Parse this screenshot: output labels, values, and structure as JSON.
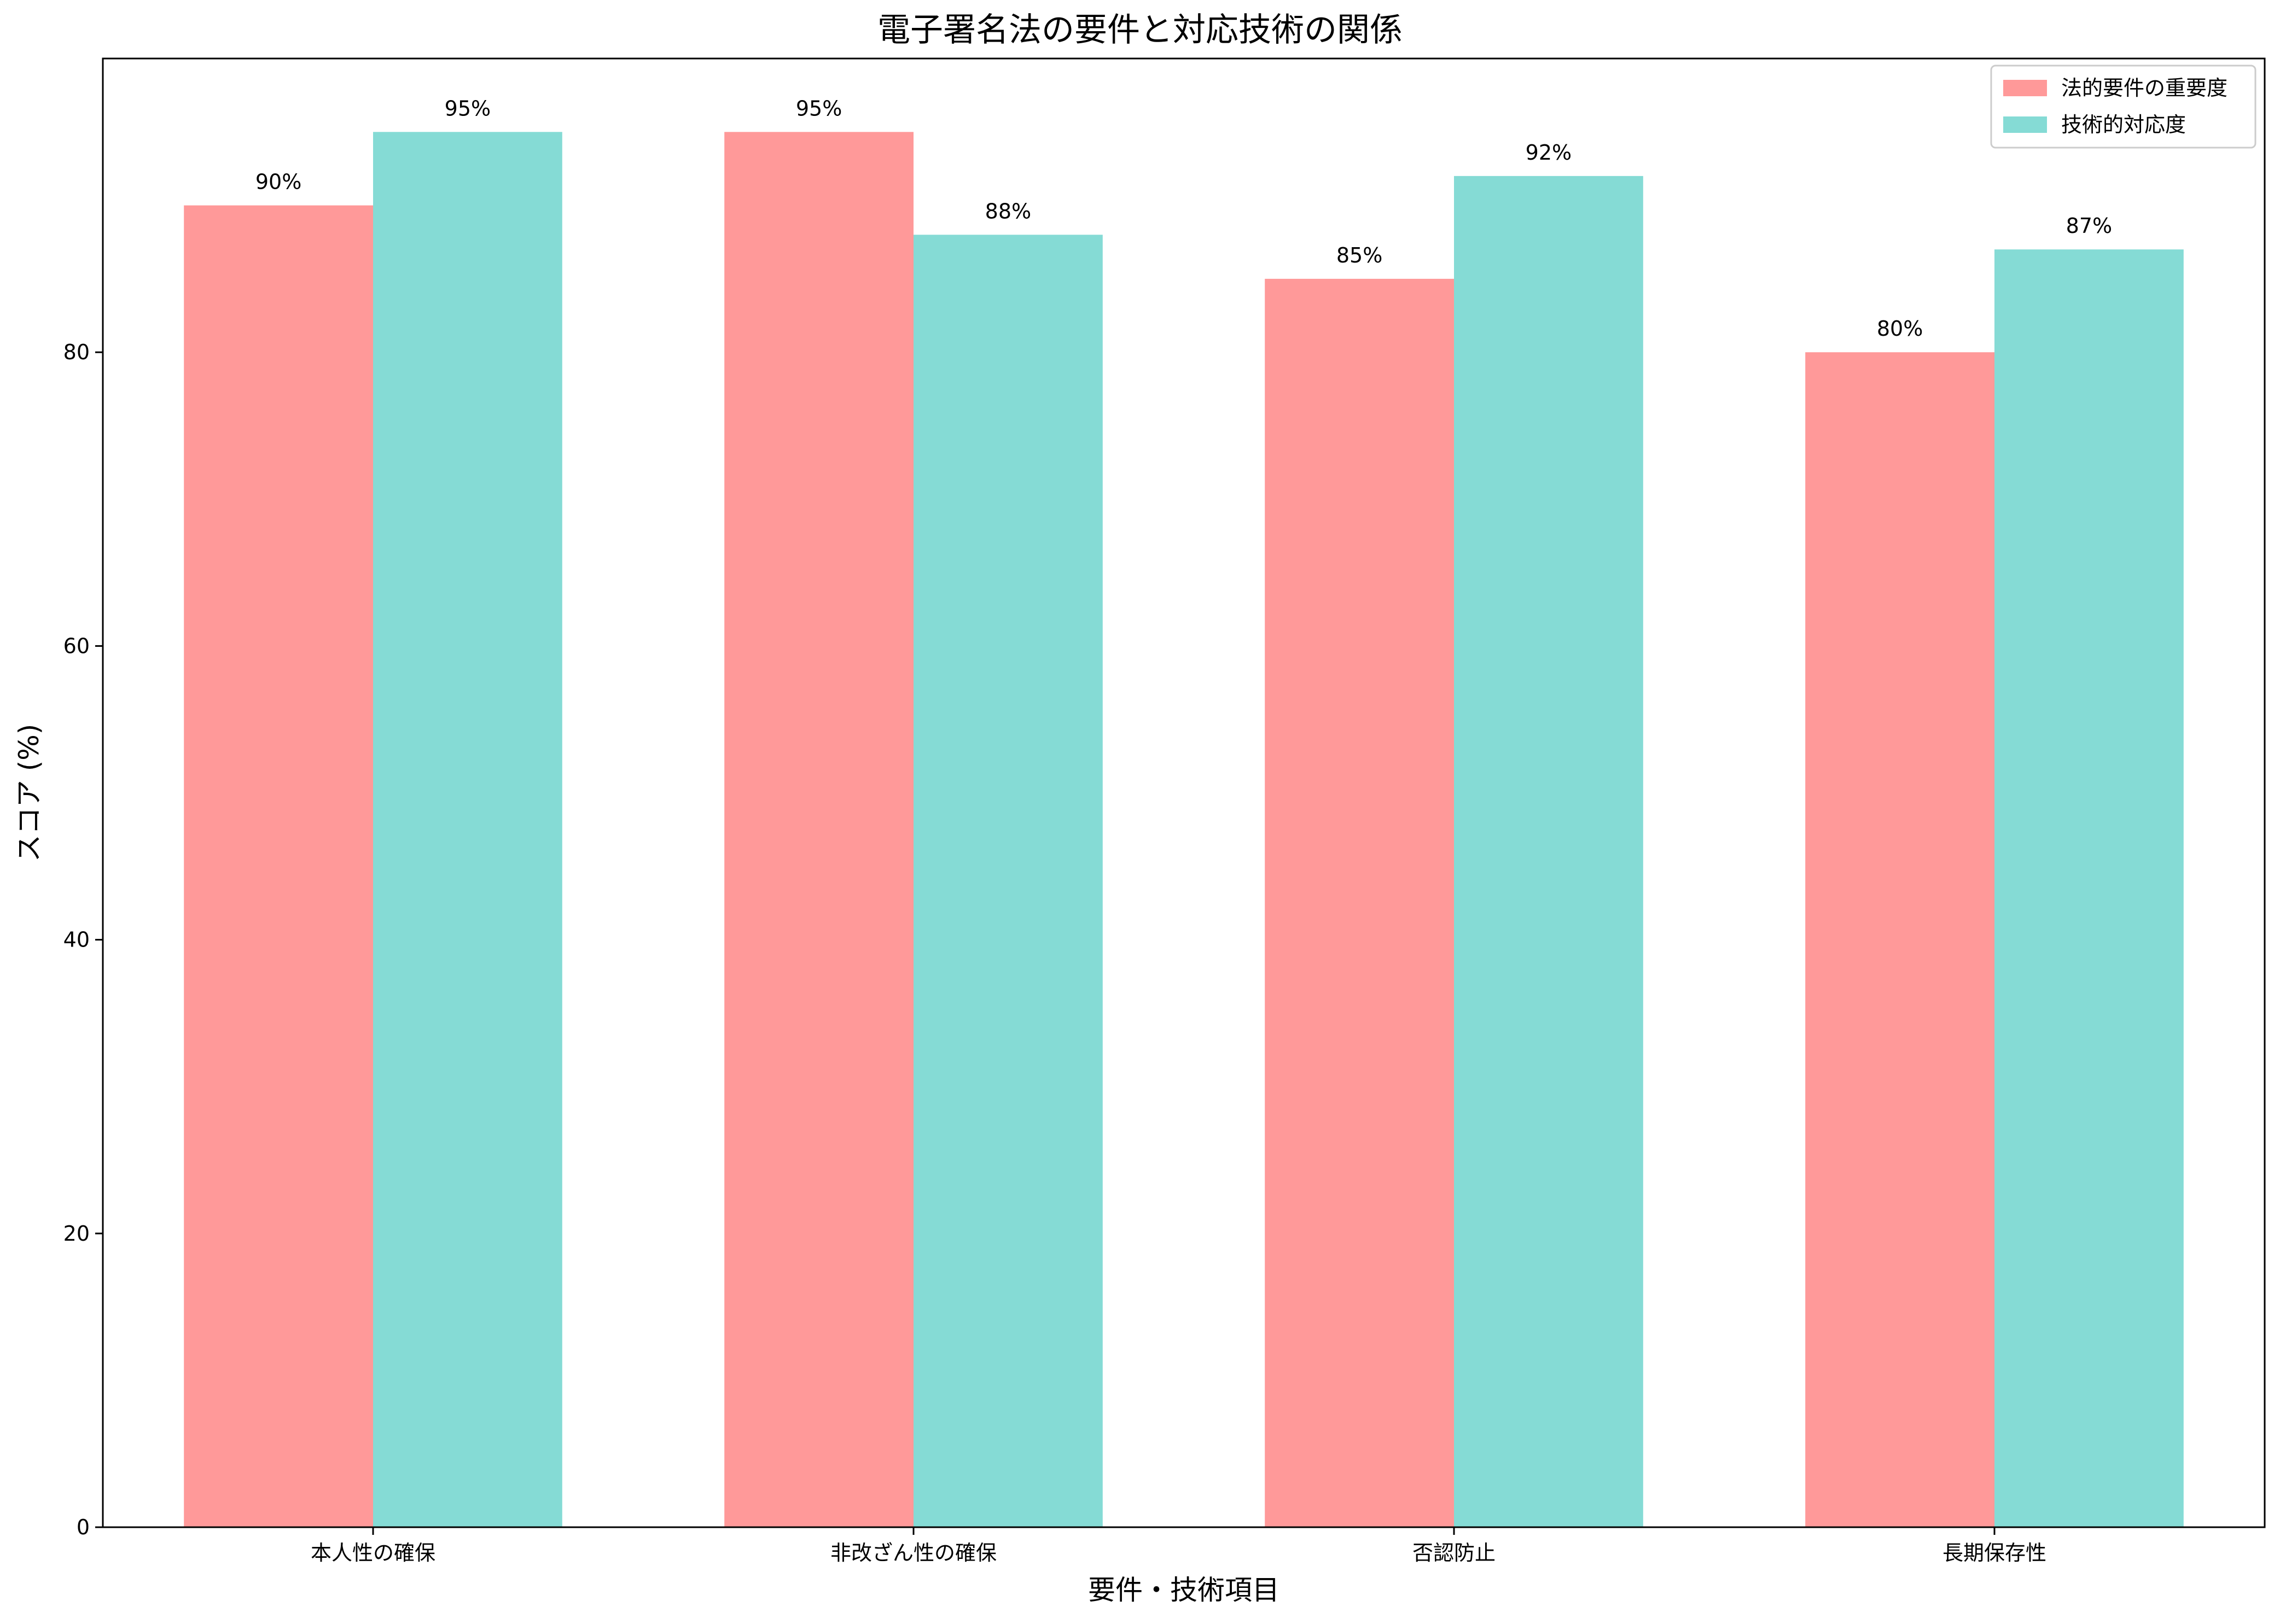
{
  "chart_data": {
    "type": "bar",
    "title": "電子署名法の要件と対応技術の関係",
    "xlabel": "要件・技術項目",
    "ylabel": "スコア (%)",
    "categories": [
      "本人性の確保",
      "非改ざん性の確保",
      "否認防止",
      "長期保存性"
    ],
    "series": [
      {
        "name": "法的要件の重要度",
        "values": [
          90,
          95,
          85,
          80
        ],
        "color": "#ff9999"
      },
      {
        "name": "技術的対応度",
        "values": [
          95,
          88,
          92,
          87
        ],
        "color": "#85dbd5"
      }
    ],
    "value_suffix": "%",
    "ylim": [
      0,
      100
    ],
    "yticks": [
      0,
      20,
      40,
      60,
      80
    ],
    "grid": false,
    "legend_position": "top-right"
  }
}
